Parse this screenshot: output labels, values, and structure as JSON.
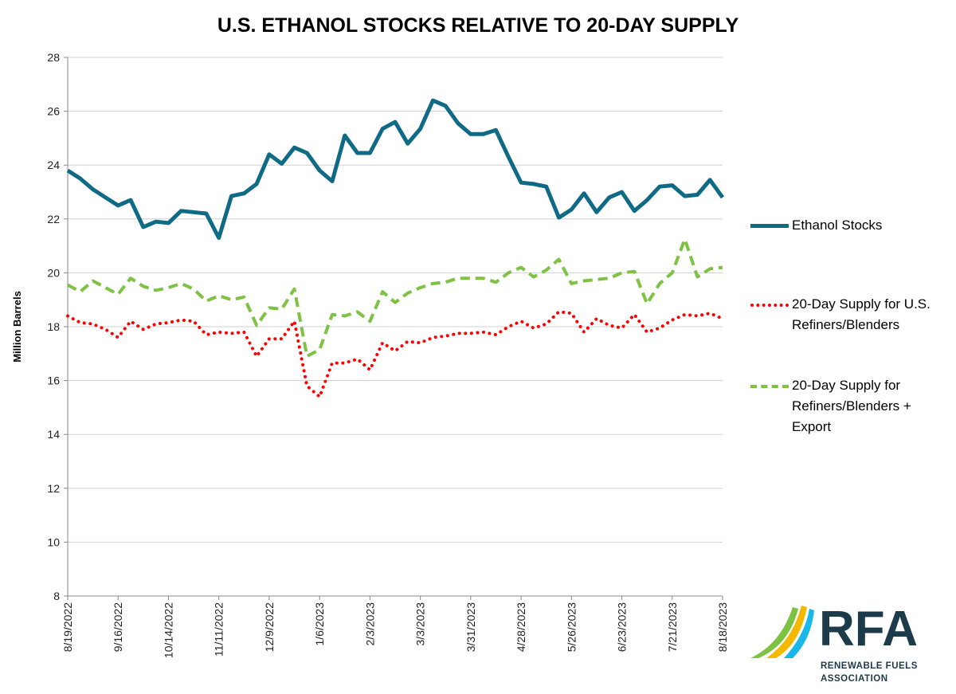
{
  "chart_data": {
    "type": "line",
    "title": "U.S. ETHANOL STOCKS RELATIVE TO 20-DAY SUPPLY",
    "ylabel": "Million Barrels",
    "xlabel": "",
    "ylim": [
      8,
      28
    ],
    "yticks": [
      8,
      10,
      12,
      14,
      16,
      18,
      20,
      22,
      24,
      26,
      28
    ],
    "grid": true,
    "legend": "right",
    "x": [
      "8/19/2022",
      "8/26/2022",
      "9/2/2022",
      "9/9/2022",
      "9/16/2022",
      "9/23/2022",
      "9/30/2022",
      "10/7/2022",
      "10/14/2022",
      "10/21/2022",
      "10/28/2022",
      "11/4/2022",
      "11/11/2022",
      "11/18/2022",
      "11/25/2022",
      "12/2/2022",
      "12/9/2022",
      "12/16/2022",
      "12/23/2022",
      "12/30/2022",
      "1/6/2023",
      "1/13/2023",
      "1/20/2023",
      "1/27/2023",
      "2/3/2023",
      "2/10/2023",
      "2/17/2023",
      "2/24/2023",
      "3/3/2023",
      "3/10/2023",
      "3/17/2023",
      "3/24/2023",
      "3/31/2023",
      "4/7/2023",
      "4/14/2023",
      "4/21/2023",
      "4/28/2023",
      "5/5/2023",
      "5/12/2023",
      "5/19/2023",
      "5/26/2023",
      "6/2/2023",
      "6/9/2023",
      "6/16/2023",
      "6/23/2023",
      "6/30/2023",
      "7/7/2023",
      "7/14/2023",
      "7/21/2023",
      "7/28/2023",
      "8/4/2023",
      "8/11/2023",
      "8/18/2023"
    ],
    "xtick_labels": [
      "8/19/2022",
      "9/16/2022",
      "10/14/2022",
      "11/11/2022",
      "12/9/2022",
      "1/6/2023",
      "2/3/2023",
      "3/3/2023",
      "3/31/2023",
      "4/28/2023",
      "5/26/2023",
      "6/23/2023",
      "7/21/2023",
      "8/18/2023"
    ],
    "series": [
      {
        "name": "Ethanol Stocks",
        "color": "#0e6a85",
        "style": "solid",
        "values": [
          23.8,
          23.5,
          23.1,
          22.8,
          22.5,
          22.7,
          21.7,
          21.9,
          21.85,
          22.3,
          22.25,
          22.2,
          21.3,
          22.85,
          22.95,
          23.3,
          24.4,
          24.05,
          24.65,
          24.45,
          23.8,
          23.4,
          25.1,
          24.45,
          24.45,
          25.35,
          25.6,
          24.8,
          25.35,
          26.4,
          26.2,
          25.55,
          25.15,
          25.15,
          25.3,
          24.3,
          23.35,
          23.3,
          23.2,
          22.05,
          22.35,
          22.95,
          22.25,
          22.8,
          23.0,
          22.3,
          22.7,
          23.2,
          23.25,
          22.85,
          22.9,
          23.45,
          22.8
        ]
      },
      {
        "name": "20-Day Supply for U.S. Refiners/Blenders",
        "color": "#ff0000",
        "style": "dotted",
        "values": [
          18.4,
          18.15,
          18.1,
          17.9,
          17.6,
          18.2,
          17.9,
          18.1,
          18.15,
          18.25,
          18.2,
          17.7,
          17.8,
          17.75,
          17.8,
          16.9,
          17.55,
          17.55,
          18.2,
          15.8,
          15.4,
          16.65,
          16.65,
          16.8,
          16.4,
          17.4,
          17.1,
          17.45,
          17.4,
          17.6,
          17.65,
          17.75,
          17.75,
          17.8,
          17.7,
          18.0,
          18.2,
          17.95,
          18.1,
          18.55,
          18.5,
          17.8,
          18.3,
          18.05,
          17.95,
          18.45,
          17.8,
          17.95,
          18.25,
          18.45,
          18.4,
          18.5,
          18.3
        ]
      },
      {
        "name": "20-Day Supply for Refiners/Blenders + Export",
        "color": "#7dc242",
        "style": "dashed",
        "values": [
          19.55,
          19.3,
          19.7,
          19.45,
          19.2,
          19.8,
          19.5,
          19.35,
          19.45,
          19.6,
          19.4,
          18.95,
          19.15,
          19.0,
          19.1,
          18.05,
          18.7,
          18.65,
          19.4,
          16.9,
          17.15,
          18.45,
          18.4,
          18.55,
          18.2,
          19.3,
          18.9,
          19.25,
          19.45,
          19.6,
          19.65,
          19.8,
          19.8,
          19.8,
          19.65,
          20.0,
          20.2,
          19.85,
          20.1,
          20.5,
          19.6,
          19.7,
          19.75,
          19.8,
          20.0,
          20.05,
          18.85,
          19.6,
          20.0,
          21.25,
          19.85,
          20.15,
          20.2
        ]
      }
    ]
  },
  "legend": {
    "items": [
      {
        "lines": [
          "Ethanol Stocks"
        ]
      },
      {
        "lines": [
          "20-Day Supply for U.S.",
          "Refiners/Blenders"
        ]
      },
      {
        "lines": [
          "20-Day Supply for",
          "Refiners/Blenders +",
          "Export"
        ]
      }
    ]
  },
  "logo": {
    "text": "RFA",
    "line1": "RENEWABLE FUELS",
    "line2": "ASSOCIATION",
    "colors": [
      "#7dc242",
      "#f5b800",
      "#1ab7ea",
      "#1b3a4a"
    ]
  }
}
